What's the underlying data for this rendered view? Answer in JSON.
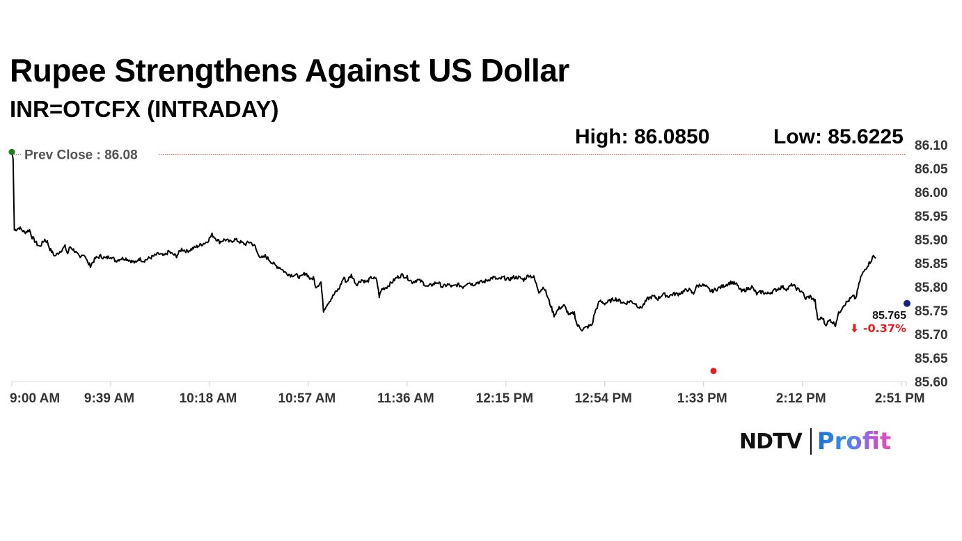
{
  "header": {
    "title": "Rupee Strengthens Against US Dollar",
    "subtitle": "INR=OTCFX (INTRADAY)",
    "high_label": "High: 86.0850",
    "low_label": "Low: 85.6225"
  },
  "logo": {
    "ndtv": "NDTV",
    "profit": "Profit"
  },
  "colors": {
    "line": "#000000",
    "prev_close_line": "#c0392b",
    "start_dot": "#1a7f1a",
    "low_dot": "#e02020",
    "last_dot": "#1a237e",
    "change": "#e02020"
  },
  "chart_data": {
    "type": "line",
    "title": "Rupee Strengthens Against US Dollar",
    "subtitle": "INR=OTCFX (INTRADAY)",
    "xlabel": "",
    "ylabel": "",
    "x_ticks": [
      "9:00 AM",
      "9:39 AM",
      "10:18 AM",
      "10:57 AM",
      "11:36 AM",
      "12:15 PM",
      "12:54 PM",
      "1:33 PM",
      "2:12 PM",
      "2:51 PM"
    ],
    "y_ticks": [
      85.6,
      85.65,
      85.7,
      85.75,
      85.8,
      85.85,
      85.9,
      85.95,
      86.0,
      86.05,
      86.1
    ],
    "ylim": [
      85.6,
      86.1
    ],
    "xlim_minutes_from_open": [
      0,
      353
    ],
    "prev_close": {
      "label": "Prev Close : 86.08",
      "value": 86.08
    },
    "last": {
      "value_label": "85.765",
      "change_label": "-0.37%",
      "value": 85.765
    },
    "series": [
      {
        "points": [
          [
            0,
            86.085
          ],
          [
            0.5,
            86.07
          ],
          [
            1,
            85.92
          ],
          [
            3,
            85.925
          ],
          [
            5,
            85.915
          ],
          [
            7,
            85.92
          ],
          [
            8,
            85.905
          ],
          [
            10,
            85.89
          ],
          [
            11,
            85.885
          ],
          [
            13,
            85.9
          ],
          [
            14,
            85.895
          ],
          [
            15,
            85.88
          ],
          [
            17,
            85.865
          ],
          [
            19,
            85.875
          ],
          [
            21,
            85.885
          ],
          [
            22,
            85.87
          ],
          [
            23,
            85.885
          ],
          [
            25,
            85.875
          ],
          [
            27,
            85.86
          ],
          [
            28,
            85.87
          ],
          [
            29,
            85.865
          ],
          [
            30,
            85.85
          ],
          [
            31,
            85.845
          ],
          [
            33,
            85.86
          ],
          [
            35,
            85.865
          ],
          [
            37,
            85.86
          ],
          [
            39,
            85.865
          ],
          [
            41,
            85.855
          ],
          [
            43,
            85.86
          ],
          [
            45,
            85.86
          ],
          [
            47,
            85.855
          ],
          [
            49,
            85.85
          ],
          [
            50,
            85.86
          ],
          [
            52,
            85.855
          ],
          [
            54,
            85.86
          ],
          [
            56,
            85.865
          ],
          [
            58,
            85.87
          ],
          [
            60,
            85.865
          ],
          [
            62,
            85.875
          ],
          [
            63,
            85.87
          ],
          [
            65,
            85.865
          ],
          [
            67,
            85.88
          ],
          [
            69,
            85.875
          ],
          [
            71,
            85.88
          ],
          [
            73,
            85.885
          ],
          [
            75,
            85.89
          ],
          [
            77,
            85.895
          ],
          [
            79,
            85.91
          ],
          [
            81,
            85.9
          ],
          [
            82,
            85.895
          ],
          [
            84,
            85.9
          ],
          [
            86,
            85.895
          ],
          [
            88,
            85.9
          ],
          [
            90,
            85.895
          ],
          [
            92,
            85.89
          ],
          [
            94,
            85.895
          ],
          [
            96,
            85.885
          ],
          [
            97,
            85.87
          ],
          [
            99,
            85.86
          ],
          [
            100,
            85.865
          ],
          [
            102,
            85.855
          ],
          [
            104,
            85.845
          ],
          [
            106,
            85.84
          ],
          [
            108,
            85.83
          ],
          [
            110,
            85.825
          ],
          [
            112,
            85.825
          ],
          [
            114,
            85.82
          ],
          [
            116,
            85.83
          ],
          [
            118,
            85.815
          ],
          [
            119,
            85.82
          ],
          [
            120,
            85.8
          ],
          [
            122,
            85.81
          ],
          [
            123,
            85.75
          ],
          [
            124,
            85.76
          ],
          [
            126,
            85.775
          ],
          [
            128,
            85.79
          ],
          [
            129,
            85.795
          ],
          [
            131,
            85.82
          ],
          [
            132,
            85.81
          ],
          [
            134,
            85.825
          ],
          [
            136,
            85.805
          ],
          [
            138,
            85.815
          ],
          [
            140,
            85.81
          ],
          [
            142,
            85.82
          ],
          [
            144,
            85.815
          ],
          [
            145,
            85.78
          ],
          [
            146,
            85.795
          ],
          [
            148,
            85.8
          ],
          [
            150,
            85.81
          ],
          [
            152,
            85.82
          ],
          [
            154,
            85.825
          ],
          [
            156,
            85.82
          ],
          [
            158,
            85.81
          ],
          [
            160,
            85.815
          ],
          [
            162,
            85.81
          ],
          [
            164,
            85.8
          ],
          [
            166,
            85.805
          ],
          [
            168,
            85.81
          ],
          [
            170,
            85.8
          ],
          [
            172,
            85.805
          ],
          [
            174,
            85.8
          ],
          [
            176,
            85.805
          ],
          [
            178,
            85.8
          ],
          [
            180,
            85.81
          ],
          [
            182,
            85.805
          ],
          [
            184,
            85.81
          ],
          [
            186,
            85.81
          ],
          [
            188,
            85.815
          ],
          [
            190,
            85.82
          ],
          [
            192,
            85.815
          ],
          [
            194,
            85.82
          ],
          [
            196,
            85.815
          ],
          [
            198,
            85.82
          ],
          [
            200,
            85.82
          ],
          [
            202,
            85.815
          ],
          [
            204,
            85.825
          ],
          [
            206,
            85.82
          ],
          [
            208,
            85.79
          ],
          [
            210,
            85.8
          ],
          [
            212,
            85.77
          ],
          [
            214,
            85.74
          ],
          [
            216,
            85.755
          ],
          [
            218,
            85.76
          ],
          [
            220,
            85.74
          ],
          [
            222,
            85.745
          ],
          [
            223,
            85.72
          ],
          [
            225,
            85.71
          ],
          [
            227,
            85.715
          ],
          [
            229,
            85.72
          ],
          [
            230,
            85.745
          ],
          [
            232,
            85.77
          ],
          [
            234,
            85.765
          ],
          [
            236,
            85.77
          ],
          [
            238,
            85.775
          ],
          [
            240,
            85.77
          ],
          [
            242,
            85.765
          ],
          [
            244,
            85.77
          ],
          [
            246,
            85.765
          ],
          [
            248,
            85.755
          ],
          [
            249,
            85.76
          ],
          [
            251,
            85.775
          ],
          [
            253,
            85.78
          ],
          [
            255,
            85.775
          ],
          [
            257,
            85.785
          ],
          [
            259,
            85.78
          ],
          [
            261,
            85.785
          ],
          [
            263,
            85.785
          ],
          [
            265,
            85.79
          ],
          [
            267,
            85.795
          ],
          [
            269,
            85.785
          ],
          [
            270,
            85.8
          ],
          [
            272,
            85.805
          ],
          [
            274,
            85.8
          ],
          [
            276,
            85.79
          ],
          [
            278,
            85.795
          ],
          [
            280,
            85.8
          ],
          [
            282,
            85.805
          ],
          [
            284,
            85.81
          ],
          [
            286,
            85.805
          ],
          [
            288,
            85.79
          ],
          [
            290,
            85.795
          ],
          [
            292,
            85.8
          ],
          [
            294,
            85.785
          ],
          [
            296,
            85.79
          ],
          [
            298,
            85.785
          ],
          [
            300,
            85.79
          ],
          [
            302,
            85.795
          ],
          [
            304,
            85.8
          ],
          [
            306,
            85.795
          ],
          [
            308,
            85.805
          ],
          [
            310,
            85.795
          ],
          [
            312,
            85.79
          ],
          [
            313,
            85.775
          ],
          [
            315,
            85.78
          ],
          [
            317,
            85.77
          ],
          [
            318,
            85.73
          ],
          [
            320,
            85.735
          ],
          [
            321,
            85.72
          ],
          [
            323,
            85.73
          ],
          [
            325,
            85.72
          ],
          [
            326,
            85.74
          ],
          [
            328,
            85.76
          ],
          [
            330,
            85.77
          ],
          [
            332,
            85.78
          ],
          [
            333,
            85.775
          ],
          [
            335,
            85.82
          ],
          [
            337,
            85.84
          ],
          [
            339,
            85.855
          ],
          [
            340,
            85.865
          ],
          [
            341,
            85.86
          ]
        ]
      }
    ]
  }
}
